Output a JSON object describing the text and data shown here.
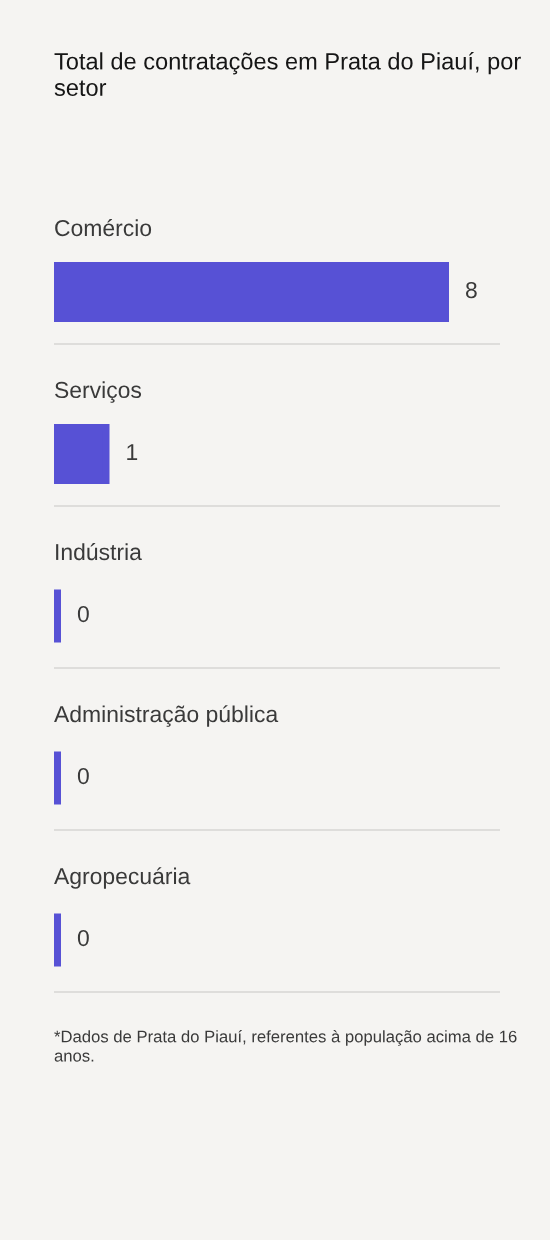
{
  "chart_data": {
    "type": "bar",
    "orientation": "horizontal",
    "title": "Total de contratações em Prata do Piauí, por setor",
    "categories": [
      "Comércio",
      "Serviços",
      "Indústria",
      "Administração pública",
      "Agropecuária"
    ],
    "values": [
      8,
      1,
      0,
      0,
      0
    ],
    "color": "#5751d5",
    "data_labels": true,
    "grid": "y",
    "tick_labels": "y",
    "annotations": [
      "*Dados de Prata do Piauí, referentes à população acima de 16 anos."
    ]
  }
}
